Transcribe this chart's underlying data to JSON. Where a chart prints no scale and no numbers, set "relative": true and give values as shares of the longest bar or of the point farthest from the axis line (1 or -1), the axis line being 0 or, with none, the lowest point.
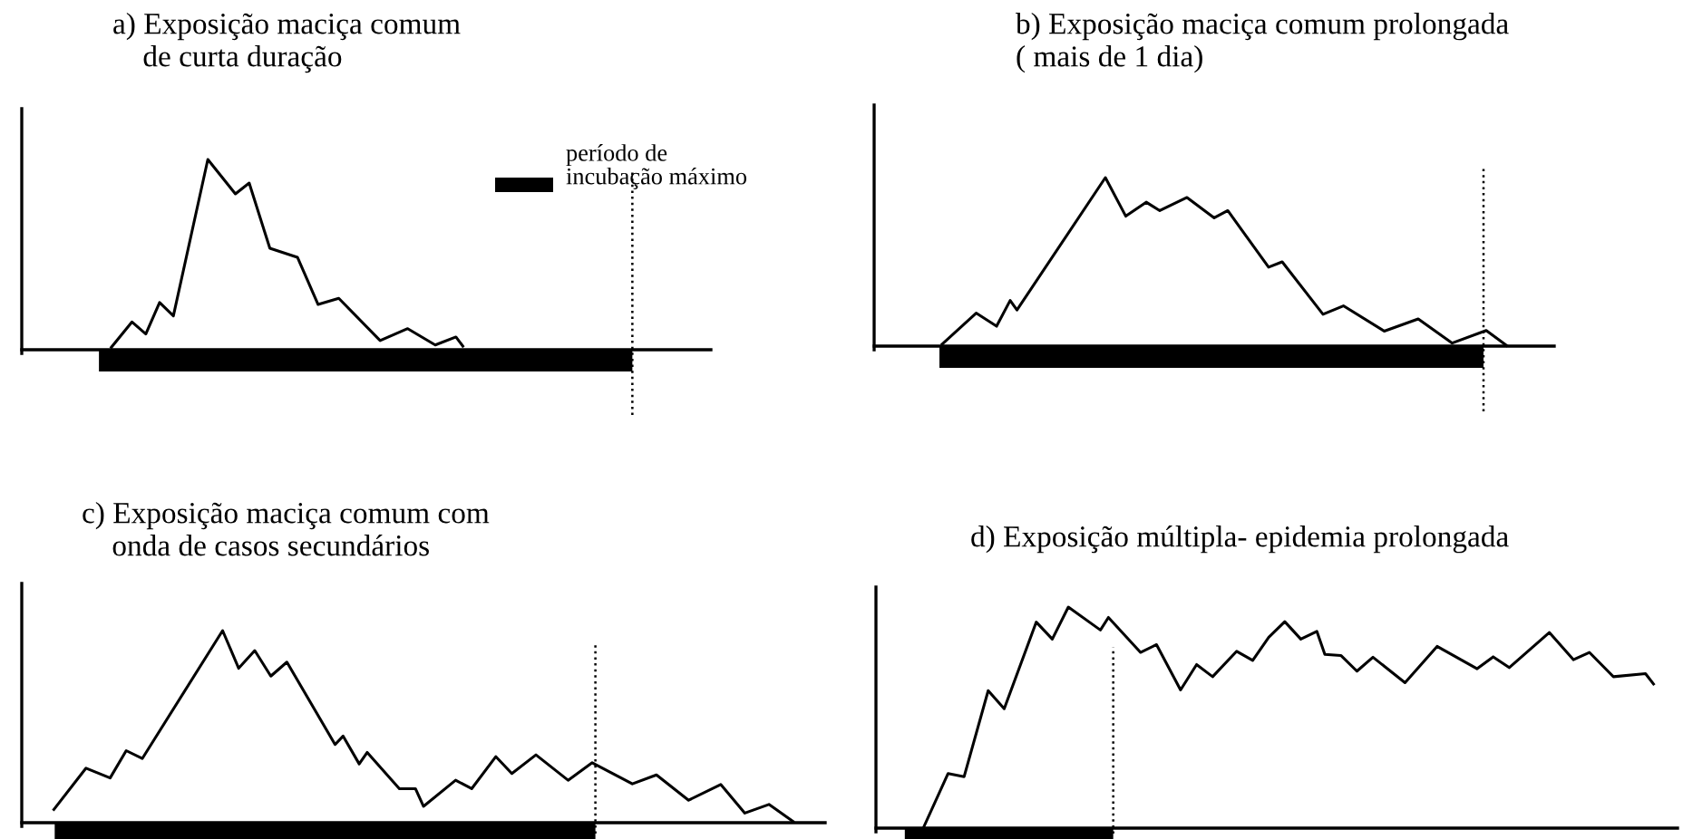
{
  "chart_data": [
    {
      "type": "line",
      "title": "a) Exposição maciça comum\n    de curta duração",
      "relative": true,
      "marker": "none",
      "line_style": "solid",
      "annotations": [
        "período de\nincubação máximo"
      ],
      "categories": [
        null,
        null,
        null,
        null,
        null,
        null,
        null,
        null,
        null,
        null,
        null,
        null,
        null,
        null,
        null,
        null,
        null,
        null,
        null,
        null,
        null,
        null,
        null,
        null,
        null,
        null,
        null,
        null,
        null,
        null,
        null,
        null,
        null,
        null,
        null,
        null,
        null,
        null,
        null,
        null,
        null,
        null,
        null,
        null,
        null,
        null,
        null,
        null,
        null,
        null,
        null,
        null,
        null,
        null,
        null,
        null,
        null,
        null,
        null,
        null,
        null,
        null,
        null,
        null,
        null,
        null,
        null,
        null,
        null,
        null,
        null,
        null,
        null,
        null,
        null,
        null,
        null,
        null,
        null,
        null,
        null,
        null,
        null,
        null,
        null,
        null,
        null,
        null,
        null,
        null,
        null,
        null,
        null,
        null,
        null,
        null,
        null,
        null,
        null,
        null
      ],
      "series": [
        {
          "color": "#000000",
          "values": [
            null,
            null,
            null,
            null,
            null,
            null,
            null,
            null,
            null,
            null,
            null,
            null,
            null,
            0.013,
            null,
            null,
            0.146,
            null,
            0.083,
            null,
            0.248,
            null,
            0.178,
            null,
            null,
            null,
            null,
            1.0,
            null,
            null,
            null,
            0.819,
            null,
            0.876,
            null,
            null,
            0.533,
            null,
            null,
            null,
            0.486,
            null,
            null,
            0.238,
            null,
            null,
            0.27,
            null,
            null,
            null,
            null,
            null,
            0.048,
            null,
            null,
            null,
            0.111,
            null,
            null,
            null,
            0.025,
            null,
            null,
            0.067,
            0.019,
            null,
            null,
            null,
            null,
            null,
            null,
            null,
            null,
            null,
            null,
            null,
            null,
            null,
            null,
            null,
            null,
            null,
            null,
            null,
            null,
            null,
            null,
            null,
            null,
            null,
            null,
            null,
            null,
            null,
            null,
            null,
            null,
            null,
            null,
            null
          ]
        }
      ]
    },
    {
      "type": "line",
      "title": "b) Exposição maciça comum prolongada\n( mais de 1 dia)",
      "relative": true,
      "marker": "none",
      "line_style": "solid",
      "categories": [
        null,
        null,
        null,
        null,
        null,
        null,
        null,
        null,
        null,
        null,
        null,
        null,
        null,
        null,
        null,
        null,
        null,
        null,
        null,
        null,
        null,
        null,
        null,
        null,
        null,
        null,
        null,
        null,
        null,
        null,
        null,
        null,
        null,
        null,
        null,
        null,
        null,
        null,
        null,
        null,
        null,
        null,
        null,
        null,
        null,
        null,
        null,
        null,
        null,
        null,
        null,
        null,
        null,
        null,
        null,
        null,
        null,
        null,
        null,
        null,
        null,
        null,
        null,
        null,
        null,
        null,
        null,
        null,
        null,
        null,
        null,
        null,
        null,
        null,
        null,
        null,
        null,
        null,
        null,
        null,
        null,
        null,
        null,
        null,
        null,
        null,
        null,
        null,
        null,
        null,
        null,
        null,
        null,
        null,
        null,
        null,
        null,
        null,
        null,
        null
      ],
      "series": [
        {
          "color": "#000000",
          "values": [
            null,
            null,
            null,
            null,
            null,
            null,
            null,
            null,
            null,
            null,
            0.011,
            null,
            null,
            null,
            null,
            0.196,
            null,
            null,
            0.118,
            null,
            0.271,
            0.214,
            null,
            null,
            null,
            null,
            null,
            null,
            null,
            null,
            null,
            null,
            null,
            null,
            1.0,
            null,
            null,
            0.771,
            null,
            null,
            0.854,
            null,
            0.804,
            null,
            null,
            null,
            0.882,
            null,
            null,
            null,
            0.761,
            null,
            0.804,
            null,
            null,
            null,
            null,
            null,
            0.468,
            null,
            0.5,
            null,
            null,
            null,
            null,
            null,
            0.189,
            null,
            null,
            0.239,
            null,
            null,
            null,
            null,
            null,
            0.089,
            null,
            null,
            null,
            null,
            0.161,
            null,
            null,
            null,
            null,
            0.018,
            null,
            null,
            null,
            null,
            0.093,
            null,
            null,
            0.004,
            null,
            null,
            null,
            null,
            null,
            null
          ]
        }
      ]
    },
    {
      "type": "line",
      "title": "c) Exposição maciça comum com\n    onda de casos secundários",
      "relative": true,
      "marker": "none",
      "line_style": "solid",
      "categories": [
        null,
        null,
        null,
        null,
        null,
        null,
        null,
        null,
        null,
        null,
        null,
        null,
        null,
        null,
        null,
        null,
        null,
        null,
        null,
        null,
        null,
        null,
        null,
        null,
        null,
        null,
        null,
        null,
        null,
        null,
        null,
        null,
        null,
        null,
        null,
        null,
        null,
        null,
        null,
        null,
        null,
        null,
        null,
        null,
        null,
        null,
        null,
        null,
        null,
        null,
        null,
        null,
        null,
        null,
        null,
        null,
        null,
        null,
        null,
        null,
        null,
        null,
        null,
        null,
        null,
        null,
        null,
        null,
        null,
        null,
        null,
        null,
        null,
        null,
        null,
        null,
        null,
        null,
        null,
        null,
        null,
        null,
        null,
        null,
        null,
        null,
        null,
        null,
        null,
        null,
        null,
        null,
        null,
        null,
        null,
        null,
        null,
        null,
        null,
        null
      ],
      "series": [
        {
          "color": "#000000",
          "values": [
            null,
            null,
            null,
            null,
            0.069,
            null,
            null,
            null,
            0.284,
            null,
            null,
            0.233,
            null,
            0.375,
            null,
            0.334,
            null,
            null,
            null,
            null,
            null,
            null,
            null,
            null,
            null,
            1.0,
            null,
            0.804,
            null,
            0.896,
            null,
            0.763,
            null,
            0.836,
            null,
            null,
            null,
            null,
            null,
            0.407,
            0.451,
            null,
            0.306,
            0.366,
            null,
            null,
            null,
            0.177,
            null,
            0.177,
            0.085,
            null,
            null,
            null,
            0.221,
            null,
            0.177,
            null,
            null,
            0.344,
            null,
            0.256,
            null,
            null,
            0.353,
            null,
            null,
            null,
            0.221,
            null,
            null,
            0.312,
            null,
            null,
            null,
            null,
            0.202,
            null,
            null,
            0.249,
            null,
            null,
            null,
            0.117,
            null,
            null,
            null,
            0.199,
            null,
            null,
            0.05,
            null,
            null,
            0.095,
            null,
            null,
            0.006,
            null,
            null,
            null
          ]
        }
      ]
    },
    {
      "type": "line",
      "title": "d) Exposição múltipla- epidemia prolongada",
      "relative": true,
      "marker": "none",
      "line_style": "solid",
      "categories": [
        null,
        null,
        null,
        null,
        null,
        null,
        null,
        null,
        null,
        null,
        null,
        null,
        null,
        null,
        null,
        null,
        null,
        null,
        null,
        null,
        null,
        null,
        null,
        null,
        null,
        null,
        null,
        null,
        null,
        null,
        null,
        null,
        null,
        null,
        null,
        null,
        null,
        null,
        null,
        null,
        null,
        null,
        null,
        null,
        null,
        null,
        null,
        null,
        null,
        null,
        null,
        null,
        null,
        null,
        null,
        null,
        null,
        null,
        null,
        null,
        null,
        null,
        null,
        null,
        null,
        null,
        null,
        null,
        null,
        null,
        null,
        null,
        null,
        null,
        null,
        null,
        null,
        null,
        null,
        null,
        null,
        null,
        null,
        null,
        null,
        null,
        null,
        null,
        null,
        null,
        null,
        null,
        null,
        null,
        null,
        null,
        null,
        null,
        null,
        null
      ],
      "series": [
        {
          "color": "#000000",
          "values": [
            null,
            null,
            null,
            null,
            null,
            null,
            0.008,
            null,
            null,
            0.247,
            null,
            0.233,
            null,
            null,
            0.622,
            null,
            0.54,
            null,
            null,
            null,
            0.932,
            null,
            0.855,
            null,
            1.0,
            null,
            null,
            null,
            0.896,
            0.953,
            null,
            null,
            null,
            0.795,
            null,
            0.83,
            null,
            null,
            0.625,
            null,
            0.74,
            null,
            0.685,
            null,
            null,
            0.8,
            null,
            0.759,
            null,
            0.863,
            null,
            0.934,
            null,
            0.855,
            null,
            0.89,
            0.786,
            null,
            0.781,
            null,
            0.71,
            null,
            0.773,
            null,
            null,
            null,
            0.658,
            null,
            null,
            null,
            0.822,
            null,
            null,
            null,
            null,
            0.721,
            null,
            0.775,
            null,
            0.726,
            null,
            null,
            null,
            null,
            0.885,
            null,
            null,
            0.762,
            null,
            0.795,
            null,
            null,
            0.685,
            null,
            null,
            null,
            0.699,
            0.652,
            null,
            null
          ]
        }
      ]
    }
  ]
}
